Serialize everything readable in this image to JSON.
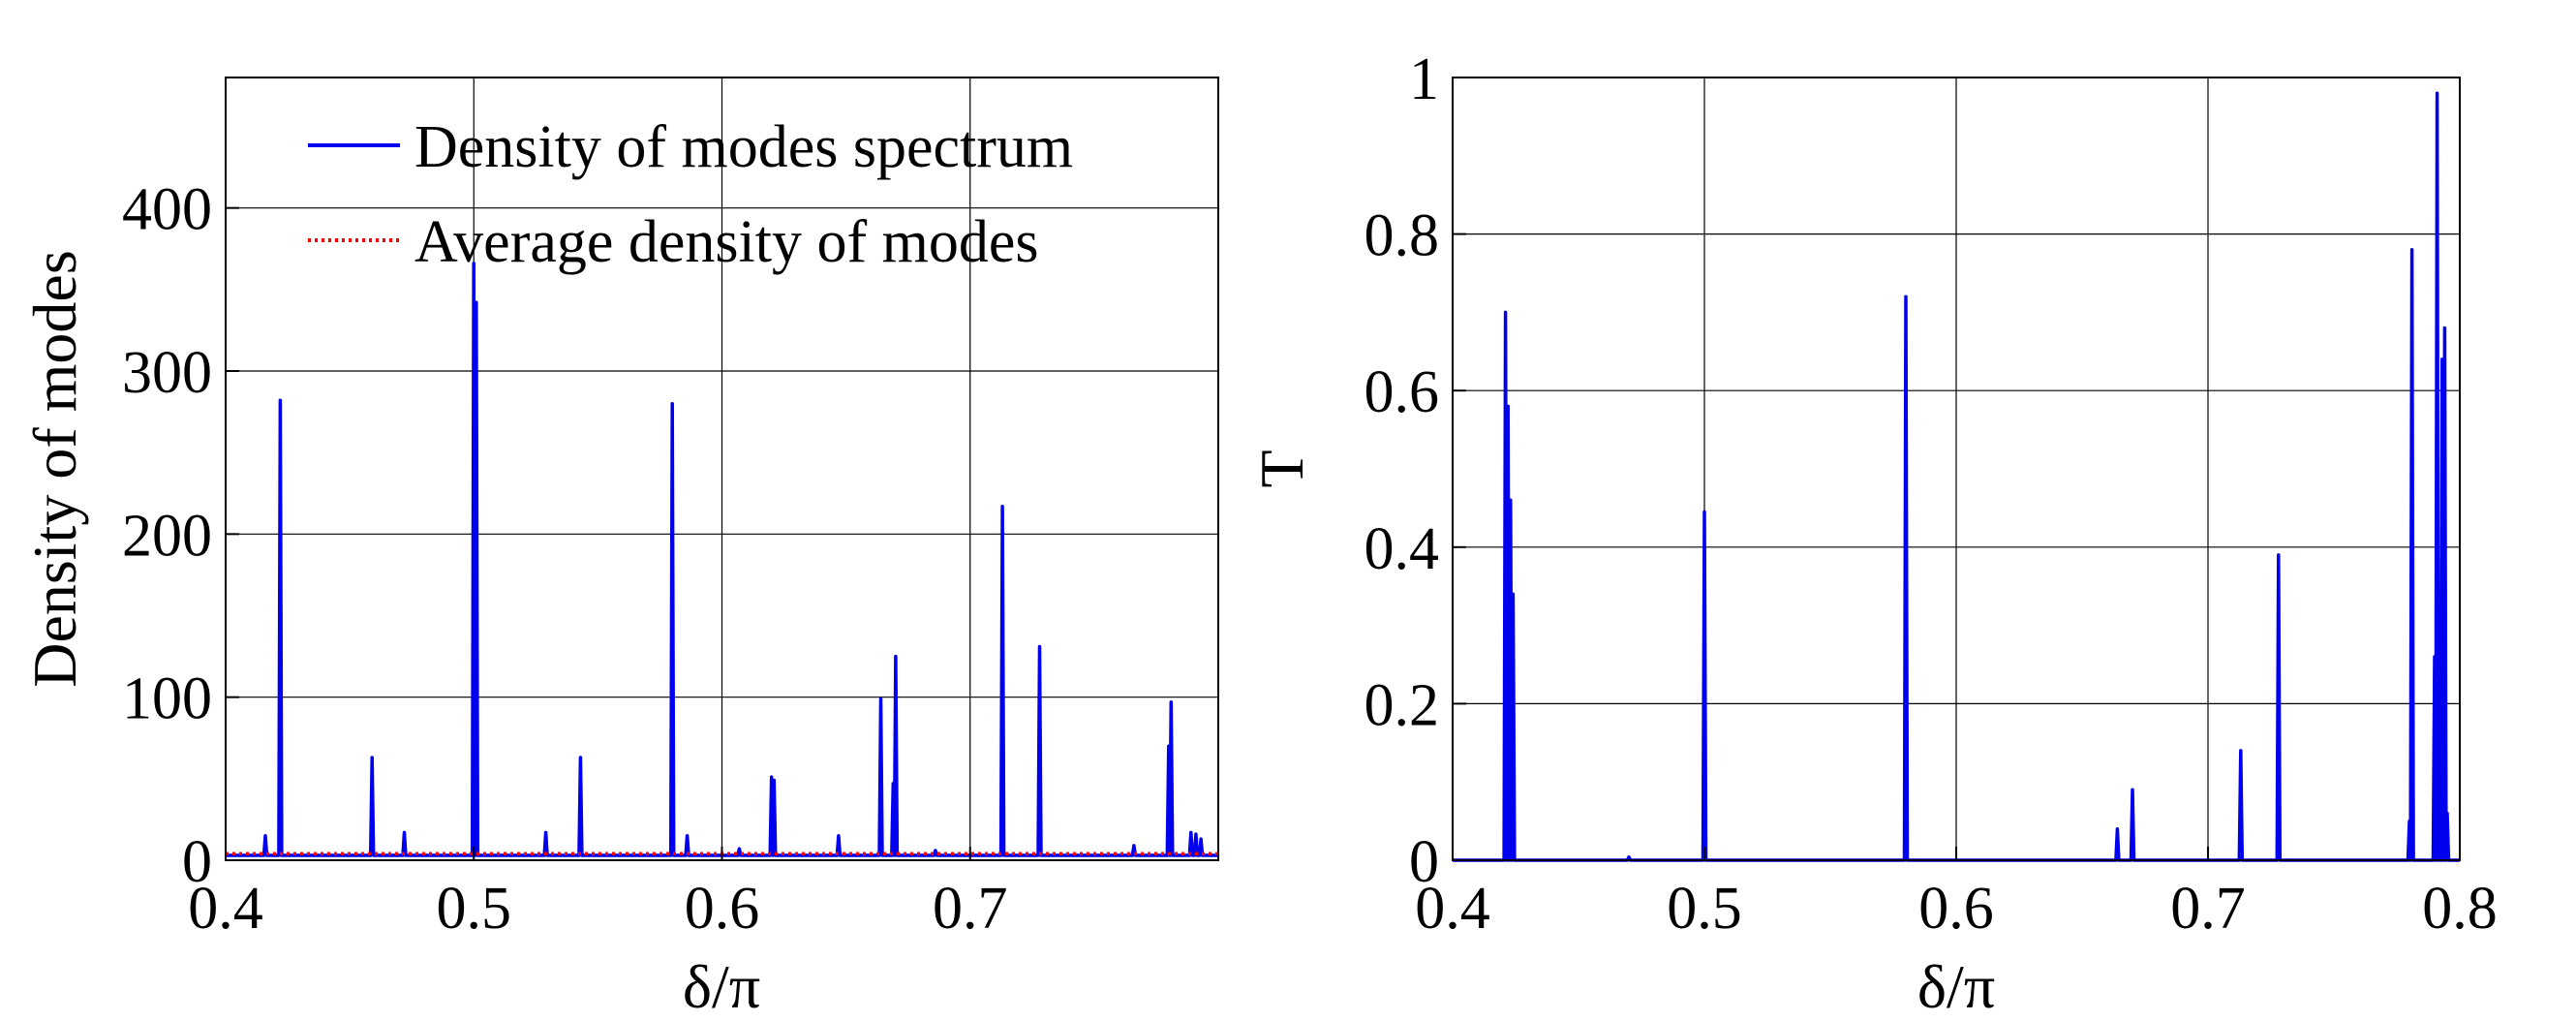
{
  "chart_data": [
    {
      "type": "line",
      "title": "",
      "xlabel": "δ/π",
      "ylabel": "Density of modes",
      "xlim": [
        0.4,
        0.8
      ],
      "ylim": [
        0,
        480
      ],
      "grid": true,
      "legend_position": "top-right",
      "x_ticks": [
        {
          "value": 0.4,
          "label": "0.4"
        },
        {
          "value": 0.5,
          "label": "0.5"
        },
        {
          "value": 0.6,
          "label": "0.6"
        },
        {
          "value": 0.7,
          "label": "0.7"
        }
      ],
      "y_ticks": [
        {
          "value": 0,
          "label": "0"
        },
        {
          "value": 100,
          "label": "100"
        },
        {
          "value": 200,
          "label": "200"
        },
        {
          "value": 300,
          "label": "300"
        },
        {
          "value": 400,
          "label": "400"
        }
      ],
      "series": [
        {
          "name": "Density of modes spectrum",
          "color": "#0000ee",
          "style": "solid",
          "baseline": 3,
          "peaks": [
            [
              0.416,
              15
            ],
            [
              0.422,
              282
            ],
            [
              0.459,
              63
            ],
            [
              0.472,
              17
            ],
            [
              0.5,
              366
            ],
            [
              0.501,
              342
            ],
            [
              0.529,
              17
            ],
            [
              0.543,
              63
            ],
            [
              0.58,
              280
            ],
            [
              0.586,
              15
            ],
            [
              0.607,
              7
            ],
            [
              0.62,
              51
            ],
            [
              0.621,
              49
            ],
            [
              0.647,
              15
            ],
            [
              0.664,
              99
            ],
            [
              0.669,
              47
            ],
            [
              0.67,
              125
            ],
            [
              0.686,
              6
            ],
            [
              0.713,
              217
            ],
            [
              0.728,
              131
            ],
            [
              0.766,
              9
            ],
            [
              0.78,
              70
            ],
            [
              0.781,
              97
            ],
            [
              0.789,
              17
            ],
            [
              0.791,
              16
            ],
            [
              0.793,
              13
            ]
          ]
        },
        {
          "name": "Average density of modes",
          "color": "#ff0000",
          "style": "dotted",
          "constant": 4
        }
      ]
    },
    {
      "type": "line",
      "title": "",
      "xlabel": "δ/π",
      "ylabel": "T",
      "xlim": [
        0.4,
        0.8
      ],
      "ylim": [
        0,
        1.0
      ],
      "grid": true,
      "x_ticks": [
        {
          "value": 0.4,
          "label": "0.4"
        },
        {
          "value": 0.5,
          "label": "0.5"
        },
        {
          "value": 0.6,
          "label": "0.6"
        },
        {
          "value": 0.7,
          "label": "0.7"
        },
        {
          "value": 0.8,
          "label": "0.8"
        }
      ],
      "y_ticks": [
        {
          "value": 0,
          "label": "0"
        },
        {
          "value": 0.2,
          "label": "0.2"
        },
        {
          "value": 0.4,
          "label": "0.4"
        },
        {
          "value": 0.6,
          "label": "0.6"
        },
        {
          "value": 0.8,
          "label": "0.8"
        },
        {
          "value": 1.0,
          "label": "1"
        }
      ],
      "series": [
        {
          "color": "#0000ee",
          "style": "solid",
          "baseline": 0,
          "peaks": [
            [
              0.421,
              0.7
            ],
            [
              0.422,
              0.58
            ],
            [
              0.423,
              0.46
            ],
            [
              0.424,
              0.34
            ],
            [
              0.47,
              0.004
            ],
            [
              0.5,
              0.445
            ],
            [
              0.58,
              0.72
            ],
            [
              0.664,
              0.04
            ],
            [
              0.67,
              0.09
            ],
            [
              0.713,
              0.14
            ],
            [
              0.728,
              0.39
            ],
            [
              0.78,
              0.05
            ],
            [
              0.781,
              0.78
            ],
            [
              0.79,
              0.26
            ],
            [
              0.791,
              0.98
            ],
            [
              0.792,
              0.19
            ],
            [
              0.793,
              0.64
            ],
            [
              0.794,
              0.68
            ],
            [
              0.795,
              0.06
            ]
          ]
        }
      ]
    }
  ]
}
